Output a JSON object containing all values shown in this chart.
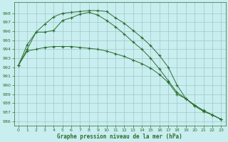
{
  "xlabel": "Graphe pression niveau de la mer (hPa)",
  "background_color": "#c8eef0",
  "grid_color": "#a0c8c8",
  "line_color": "#2d6e2d",
  "x_ticks": [
    0,
    1,
    2,
    3,
    4,
    5,
    6,
    7,
    8,
    9,
    10,
    11,
    12,
    13,
    14,
    15,
    16,
    17,
    18,
    19,
    20,
    21,
    22,
    23
  ],
  "ylim": [
    985.5,
    999.2
  ],
  "yticks": [
    986,
    987,
    988,
    989,
    990,
    991,
    992,
    993,
    994,
    995,
    996,
    997,
    998
  ],
  "series": [
    [
      992.2,
      993.8,
      994.0,
      994.2,
      994.3,
      994.3,
      994.3,
      994.2,
      994.1,
      994.0,
      993.8,
      993.5,
      993.2,
      992.8,
      992.4,
      991.9,
      991.2,
      990.3,
      989.0,
      988.5,
      987.8,
      987.2,
      986.7,
      986.2
    ],
    [
      992.2,
      994.0,
      995.9,
      995.9,
      996.1,
      997.2,
      997.5,
      997.9,
      998.1,
      997.8,
      997.2,
      996.5,
      995.7,
      994.8,
      994.0,
      993.0,
      991.8,
      990.5,
      989.2,
      988.5,
      987.7,
      987.1,
      986.7,
      986.2
    ],
    [
      992.2,
      994.5,
      995.9,
      996.8,
      997.6,
      998.0,
      998.1,
      998.2,
      998.3,
      998.3,
      998.2,
      997.5,
      996.9,
      996.1,
      995.3,
      994.4,
      993.3,
      992.0,
      990.0,
      988.5,
      987.7,
      987.1,
      986.7,
      986.2
    ]
  ]
}
